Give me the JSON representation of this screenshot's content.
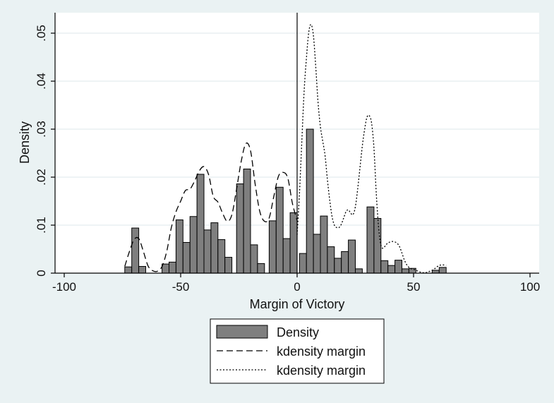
{
  "chart_data": {
    "type": "bar",
    "xlabel": "Margin of Victory",
    "ylabel": "Density",
    "xlim": [
      -100,
      100
    ],
    "ylim": [
      0,
      0.054
    ],
    "x_ticks": [
      -100,
      -50,
      0,
      50,
      100
    ],
    "x_tick_labels": [
      "-100",
      "-50",
      "0",
      "50",
      "100"
    ],
    "y_ticks": [
      0,
      0.01,
      0.02,
      0.03,
      0.04,
      0.05
    ],
    "y_tick_labels": [
      "0",
      ".01",
      ".02",
      ".03",
      ".04",
      ".05"
    ],
    "grid": true,
    "reference_line_x": 0,
    "legend_position": "bottom",
    "colors": {
      "background": "#eaf2f3",
      "plot_background": "#ffffff",
      "bar_fill": "#7f7f7f",
      "bar_edge": "#000000",
      "line": "#000000",
      "grid": "#e4ecef"
    },
    "histogram": {
      "name": "Density",
      "bin_width": 3,
      "bins": [
        {
          "x": -72.5,
          "y": 0.0013
        },
        {
          "x": -69.5,
          "y": 0.0094
        },
        {
          "x": -66.5,
          "y": 0.0014
        },
        {
          "x": -56.5,
          "y": 0.0019
        },
        {
          "x": -53.5,
          "y": 0.0023
        },
        {
          "x": -50.5,
          "y": 0.0111
        },
        {
          "x": -47.5,
          "y": 0.0064
        },
        {
          "x": -44.5,
          "y": 0.0118
        },
        {
          "x": -41.5,
          "y": 0.0206
        },
        {
          "x": -38.5,
          "y": 0.009
        },
        {
          "x": -35.5,
          "y": 0.0105
        },
        {
          "x": -32.5,
          "y": 0.007
        },
        {
          "x": -29.5,
          "y": 0.0033
        },
        {
          "x": -24.5,
          "y": 0.0186
        },
        {
          "x": -21.5,
          "y": 0.0217
        },
        {
          "x": -18.5,
          "y": 0.0059
        },
        {
          "x": -15.5,
          "y": 0.002
        },
        {
          "x": -10.5,
          "y": 0.0109
        },
        {
          "x": -7.5,
          "y": 0.0179
        },
        {
          "x": -4.5,
          "y": 0.0072
        },
        {
          "x": -1.5,
          "y": 0.0126
        },
        {
          "x": 2.5,
          "y": 0.0041
        },
        {
          "x": 5.5,
          "y": 0.03
        },
        {
          "x": 8.5,
          "y": 0.0081
        },
        {
          "x": 11.5,
          "y": 0.0119
        },
        {
          "x": 14.5,
          "y": 0.0055
        },
        {
          "x": 17.5,
          "y": 0.0031
        },
        {
          "x": 20.5,
          "y": 0.0045
        },
        {
          "x": 23.5,
          "y": 0.0069
        },
        {
          "x": 26.5,
          "y": 0.0009
        },
        {
          "x": 31.5,
          "y": 0.0138
        },
        {
          "x": 34.5,
          "y": 0.0114
        },
        {
          "x": 37.5,
          "y": 0.0026
        },
        {
          "x": 40.5,
          "y": 0.0016
        },
        {
          "x": 43.5,
          "y": 0.0027
        },
        {
          "x": 46.5,
          "y": 0.0009
        },
        {
          "x": 49.5,
          "y": 0.001
        },
        {
          "x": 59.5,
          "y": 0.0006
        },
        {
          "x": 62.5,
          "y": 0.0012
        }
      ]
    },
    "series": [
      {
        "name": "kdensity margin",
        "style": "dashed",
        "x": [
          -74,
          -72,
          -70,
          -68,
          -66,
          -64,
          -62,
          -60,
          -58,
          -56,
          -54,
          -52,
          -50,
          -48,
          -46,
          -44,
          -42,
          -40,
          -38,
          -36,
          -34,
          -32,
          -30,
          -28,
          -26,
          -24,
          -22,
          -20,
          -18,
          -16,
          -14,
          -12,
          -10,
          -8,
          -6,
          -4,
          -2,
          0
        ],
        "y": [
          0.0014,
          0.0045,
          0.007,
          0.0072,
          0.0045,
          0.0015,
          0.0005,
          0.0004,
          0.0014,
          0.0045,
          0.0095,
          0.0128,
          0.015,
          0.0172,
          0.0175,
          0.0192,
          0.0213,
          0.0222,
          0.0205,
          0.016,
          0.0148,
          0.0125,
          0.0108,
          0.0122,
          0.0175,
          0.0233,
          0.027,
          0.0255,
          0.0185,
          0.0128,
          0.0108,
          0.0115,
          0.016,
          0.0202,
          0.021,
          0.0198,
          0.0145,
          0.011
        ]
      },
      {
        "name": "kdensity margin",
        "style": "dotted",
        "x": [
          0,
          1,
          2,
          3,
          4,
          5,
          6,
          7,
          8,
          9,
          10,
          11,
          12,
          13,
          14,
          15,
          16,
          17,
          18,
          19,
          20,
          21,
          22,
          23,
          24,
          25,
          26,
          27,
          28,
          29,
          30,
          31,
          32,
          33,
          34,
          35,
          36,
          37,
          38,
          39,
          40,
          41,
          42,
          43,
          44,
          45,
          46,
          47,
          48,
          49,
          50,
          51,
          52,
          53,
          54,
          55,
          56,
          57,
          58,
          59,
          60,
          61,
          62,
          63,
          64
        ],
        "y": [
          0.008,
          0.0165,
          0.0272,
          0.0378,
          0.0448,
          0.0502,
          0.0518,
          0.0495,
          0.043,
          0.0355,
          0.0305,
          0.0275,
          0.0245,
          0.0195,
          0.0152,
          0.0118,
          0.01,
          0.0095,
          0.0095,
          0.0102,
          0.0115,
          0.0128,
          0.0132,
          0.0125,
          0.0122,
          0.0138,
          0.0175,
          0.022,
          0.0265,
          0.03,
          0.0325,
          0.0328,
          0.0312,
          0.026,
          0.0165,
          0.0095,
          0.0058,
          0.0052,
          0.0058,
          0.0063,
          0.0065,
          0.0066,
          0.0065,
          0.0062,
          0.0055,
          0.0042,
          0.0028,
          0.0018,
          0.0012,
          0.0009,
          0.0008,
          0.0006,
          0.0004,
          0.0002,
          0.0001,
          0.0001,
          0.0002,
          0.0004,
          0.0006,
          0.0009,
          0.0013,
          0.0016,
          0.0017,
          0.0017,
          0.0016
        ]
      }
    ],
    "legend": [
      "Density",
      "kdensity margin",
      "kdensity margin"
    ]
  }
}
